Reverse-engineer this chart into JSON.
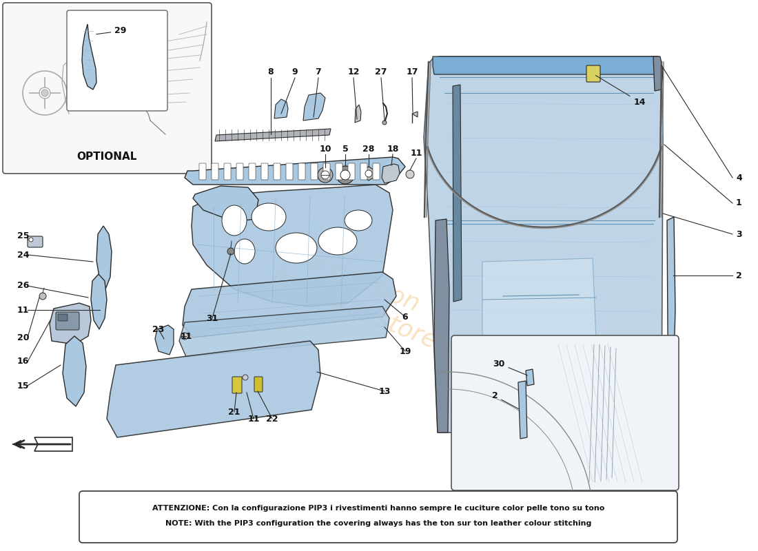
{
  "background_color": "#ffffff",
  "note_line1": "ATTENZIONE: Con la configurazione PIP3 i rivestimenti hanno sempre le cuciture color pelle tono su tono",
  "note_line2": "NOTE: With the PIP3 configuration the covering always has the ton sur ton leather colour stitching",
  "optional_label": "OPTIONAL",
  "light_blue": "#aac8e0",
  "mid_blue": "#7aaed4",
  "very_light_blue": "#d0e4f0",
  "outline_color": "#2a2a2a",
  "line_gray": "#888888",
  "watermark_color": "#e8a030",
  "fig_width": 11.0,
  "fig_height": 8.0,
  "dpi": 100
}
